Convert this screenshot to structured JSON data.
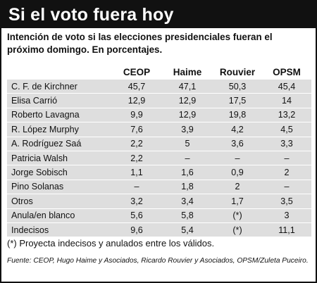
{
  "title": "Si el voto fuera hoy",
  "subtitle": "Intención de voto si las elecciones presidenciales fueran el próximo domingo. En porcentajes.",
  "columns": [
    "CEOP",
    "Haime",
    "Rouvier",
    "OPSM"
  ],
  "rows": [
    {
      "name": "C. F. de Kirchner",
      "values": [
        "45,7",
        "47,1",
        "50,3",
        "45,4"
      ]
    },
    {
      "name": "Elisa Carrió",
      "values": [
        "12,9",
        "12,9",
        "17,5",
        "14"
      ]
    },
    {
      "name": "Roberto Lavagna",
      "values": [
        "9,9",
        "12,9",
        "19,8",
        "13,2"
      ]
    },
    {
      "name": "R. López Murphy",
      "values": [
        "7,6",
        "3,9",
        "4,2",
        "4,5"
      ]
    },
    {
      "name": "A. Rodríguez Saá",
      "values": [
        "2,2",
        "5",
        "3,6",
        "3,3"
      ]
    },
    {
      "name": "Patricia Walsh",
      "values": [
        "2,2",
        "–",
        "–",
        "–"
      ]
    },
    {
      "name": "Jorge Sobisch",
      "values": [
        "1,1",
        "1,6",
        "0,9",
        "2"
      ]
    },
    {
      "name": "Pino Solanas",
      "values": [
        "–",
        "1,8",
        "2",
        "–"
      ]
    },
    {
      "name": "Otros",
      "values": [
        "3,2",
        "3,4",
        "1,7",
        "3,5"
      ]
    },
    {
      "name": "Anula/en blanco",
      "values": [
        "5,6",
        "5,8",
        "(*)",
        "3"
      ]
    },
    {
      "name": "Indecisos",
      "values": [
        "9,6",
        "5,4",
        "(*)",
        "11,1"
      ]
    }
  ],
  "note": "(*) Proyecta indecisos y anulados entre los válidos.",
  "source": "Fuente: CEOP, Hugo Haime y Asociados, Ricardo Rouvier y Asociados, OPSM/Zuleta Puceiro.",
  "colors": {
    "title_bar": "#111111",
    "row_shade": "#dedede"
  }
}
